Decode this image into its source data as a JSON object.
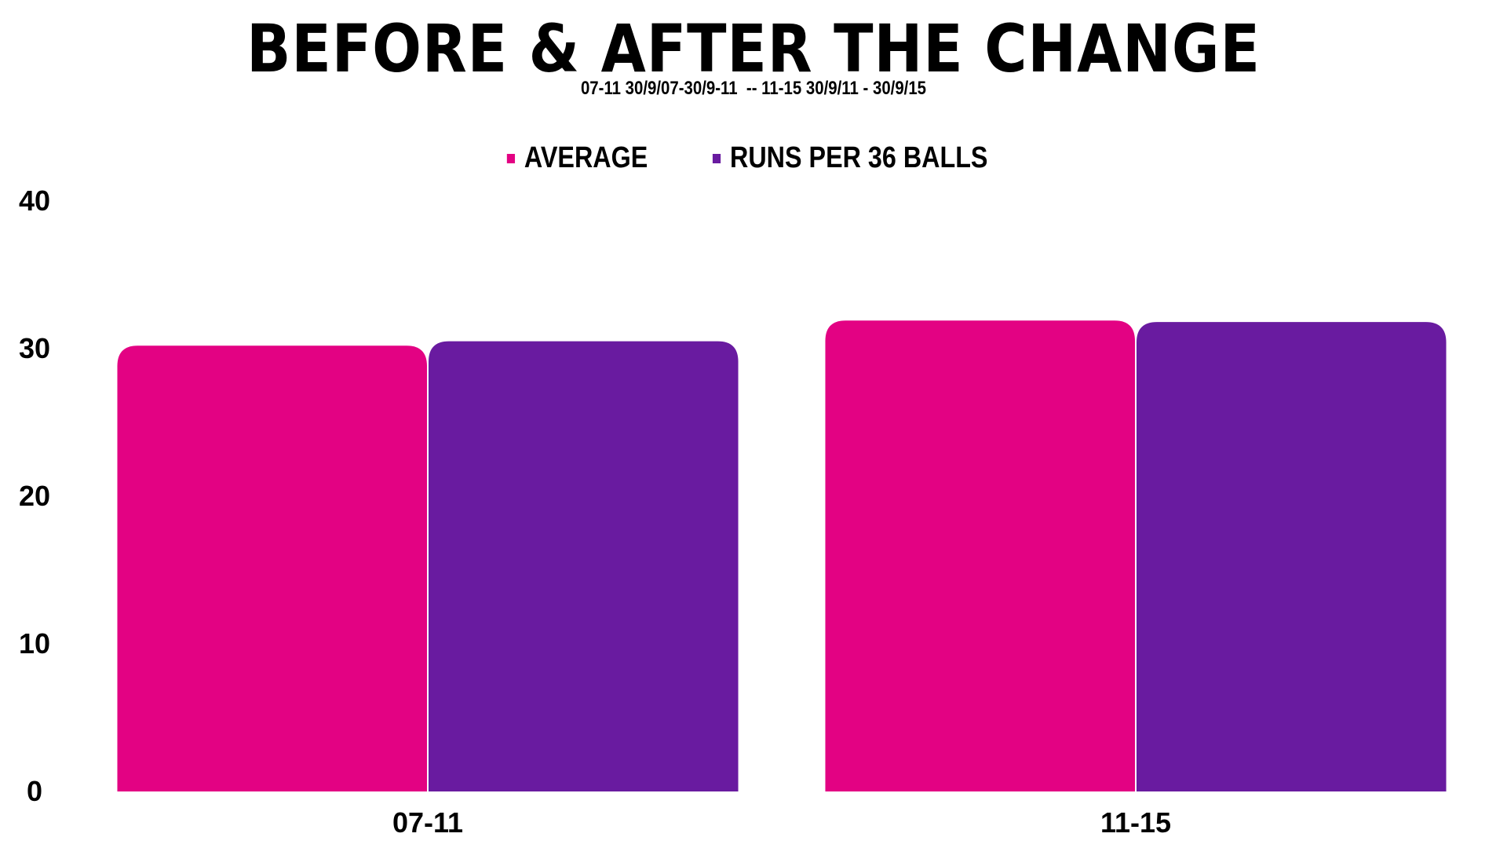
{
  "chart_data": {
    "type": "bar",
    "title": "BEFORE & AFTER THE CHANGE",
    "subtitle": "07-11 30/9/07-30/9-11  -- 11-15 30/9/11 - 30/9/15",
    "categories": [
      "07-11",
      "11-15"
    ],
    "series": [
      {
        "name": "AVERAGE",
        "color": "#e30283",
        "values": [
          30.2,
          31.9
        ]
      },
      {
        "name": "RUNS PER 36 BALLS",
        "color": "#691ba0",
        "values": [
          30.5,
          31.8
        ]
      }
    ],
    "ylim": [
      0,
      40
    ],
    "yticks": [
      0,
      10,
      20,
      30,
      40
    ],
    "grid": false,
    "legend_position": "top-center",
    "xlabel": "",
    "ylabel": ""
  }
}
